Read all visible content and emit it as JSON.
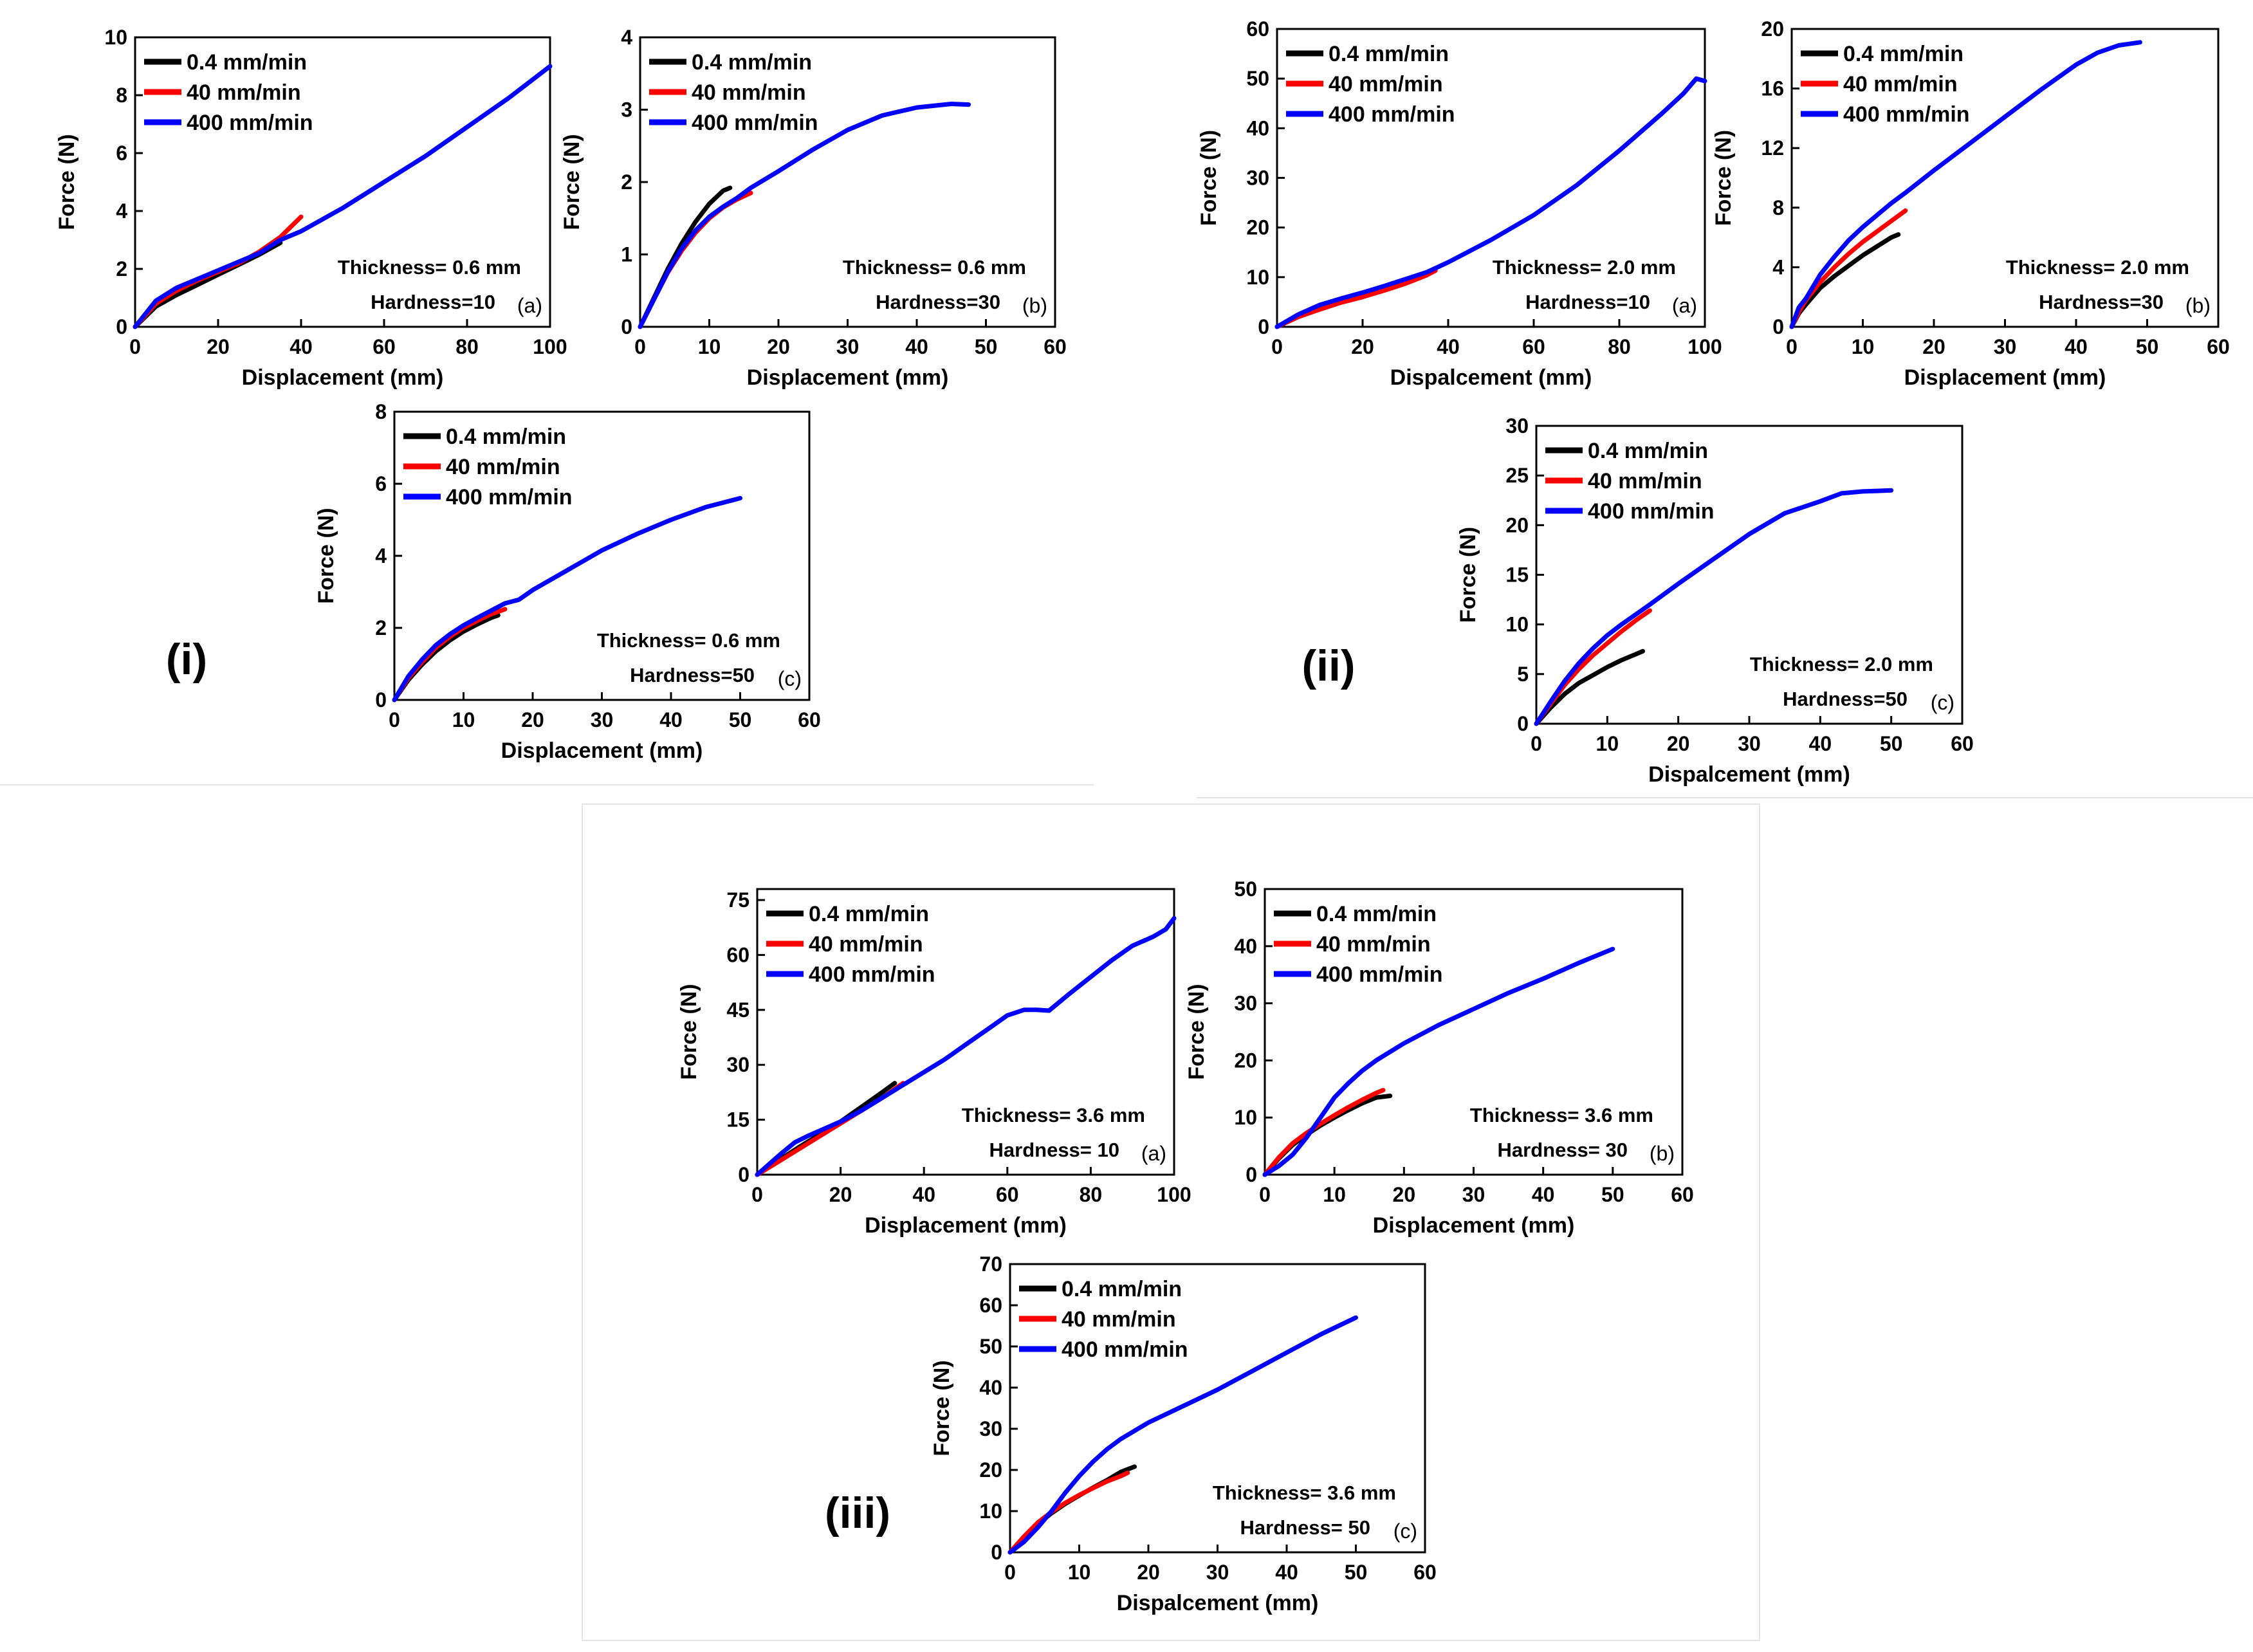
{
  "legend_colors": {
    "0.4 mm/min": "#000000",
    "40 mm/min": "#ff0000",
    "400 mm/min": "#0000ff"
  },
  "group_labels": [
    "(i)",
    "(ii)",
    "(iii)"
  ],
  "chart_data": [
    {
      "type": "line",
      "group": "(i)",
      "panel": "(a)",
      "xlabel": "Displacement (mm)",
      "ylabel": "Force (N)",
      "xlim": [
        0,
        100
      ],
      "ylim": [
        0,
        10
      ],
      "xticks": [
        "0",
        "20",
        "40",
        "60",
        "80",
        "100"
      ],
      "yticks": [
        "0",
        "2",
        "4",
        "6",
        "8",
        "10"
      ],
      "annotations": [
        "Thickness= 0.6 mm",
        "Hardness=10"
      ],
      "series": [
        {
          "name": "0.4 mm/min",
          "color": "#000000",
          "x": [
            0,
            5,
            10,
            15,
            20,
            25,
            30,
            35
          ],
          "y": [
            0,
            0.7,
            1.1,
            1.45,
            1.8,
            2.15,
            2.5,
            2.9
          ]
        },
        {
          "name": "40 mm/min",
          "color": "#ff0000",
          "x": [
            0,
            5,
            10,
            15,
            20,
            25,
            30,
            35,
            40
          ],
          "y": [
            0,
            0.8,
            1.25,
            1.6,
            1.9,
            2.2,
            2.6,
            3.1,
            3.8
          ]
        },
        {
          "name": "400 mm/min",
          "color": "#0000ff",
          "x": [
            0,
            5,
            10,
            15,
            20,
            25,
            30,
            35,
            40,
            50,
            60,
            70,
            80,
            90,
            100
          ],
          "y": [
            0,
            0.9,
            1.35,
            1.65,
            1.95,
            2.25,
            2.55,
            3.0,
            3.3,
            4.1,
            5.0,
            5.9,
            6.9,
            7.9,
            9.0
          ]
        }
      ]
    },
    {
      "type": "line",
      "group": "(i)",
      "panel": "(b)",
      "xlabel": "Displacement (mm)",
      "ylabel": "Force (N)",
      "xlim": [
        0,
        60
      ],
      "ylim": [
        0,
        4
      ],
      "xticks": [
        "0",
        "10",
        "20",
        "30",
        "40",
        "50",
        "60"
      ],
      "yticks": [
        "0",
        "1",
        "2",
        "3",
        "4"
      ],
      "annotations": [
        "Thickness= 0.6 mm",
        "Hardness=30"
      ],
      "series": [
        {
          "name": "0.4 mm/min",
          "color": "#000000",
          "x": [
            0,
            2,
            4,
            6,
            8,
            10,
            12,
            13
          ],
          "y": [
            0,
            0.4,
            0.8,
            1.15,
            1.45,
            1.7,
            1.88,
            1.92
          ]
        },
        {
          "name": "40 mm/min",
          "color": "#ff0000",
          "x": [
            0,
            2,
            4,
            6,
            8,
            10,
            12,
            14,
            16
          ],
          "y": [
            0,
            0.38,
            0.75,
            1.05,
            1.3,
            1.5,
            1.65,
            1.76,
            1.85
          ]
        },
        {
          "name": "400 mm/min",
          "color": "#0000ff",
          "x": [
            0,
            2,
            4,
            6,
            8,
            10,
            12,
            14,
            16,
            20,
            25,
            30,
            35,
            40,
            45,
            47.5
          ],
          "y": [
            0,
            0.38,
            0.76,
            1.08,
            1.33,
            1.52,
            1.66,
            1.78,
            1.92,
            2.15,
            2.45,
            2.72,
            2.92,
            3.03,
            3.08,
            3.07
          ]
        }
      ]
    },
    {
      "type": "line",
      "group": "(i)",
      "panel": "(c)",
      "xlabel": "Displacement (mm)",
      "ylabel": "Force (N)",
      "xlim": [
        0,
        60
      ],
      "ylim": [
        0,
        8
      ],
      "xticks": [
        "0",
        "10",
        "20",
        "30",
        "40",
        "50",
        "60"
      ],
      "yticks": [
        "0",
        "2",
        "4",
        "6",
        "8"
      ],
      "annotations": [
        "Thickness= 0.6 mm",
        "Hardness=50"
      ],
      "series": [
        {
          "name": "0.4 mm/min",
          "color": "#000000",
          "x": [
            0,
            2,
            4,
            6,
            8,
            10,
            12,
            14,
            15
          ],
          "y": [
            0,
            0.55,
            0.98,
            1.35,
            1.65,
            1.9,
            2.1,
            2.28,
            2.35
          ]
        },
        {
          "name": "40 mm/min",
          "color": "#ff0000",
          "x": [
            0,
            2,
            4,
            6,
            8,
            10,
            12,
            14,
            16
          ],
          "y": [
            0,
            0.6,
            1.05,
            1.45,
            1.75,
            2.0,
            2.2,
            2.38,
            2.52
          ]
        },
        {
          "name": "400 mm/min",
          "color": "#0000ff",
          "x": [
            0,
            2,
            4,
            6,
            8,
            10,
            12,
            14,
            16,
            18,
            20,
            25,
            30,
            35,
            40,
            45,
            50
          ],
          "y": [
            0,
            0.65,
            1.12,
            1.52,
            1.82,
            2.07,
            2.28,
            2.48,
            2.68,
            2.78,
            3.05,
            3.6,
            4.15,
            4.6,
            5.0,
            5.35,
            5.6
          ]
        }
      ]
    },
    {
      "type": "line",
      "group": "(ii)",
      "panel": "(a)",
      "xlabel": "Dispalcement (mm)",
      "ylabel": "Force (N)",
      "xlim": [
        0,
        100
      ],
      "ylim": [
        0,
        60
      ],
      "xticks": [
        "0",
        "20",
        "40",
        "60",
        "80",
        "100"
      ],
      "yticks": [
        "0",
        "10",
        "20",
        "30",
        "40",
        "50",
        "60"
      ],
      "annotations": [
        "Thickness= 2.0 mm",
        "Hardness=10"
      ],
      "series": [
        {
          "name": "0.4 mm/min",
          "color": "#000000",
          "x": [
            0,
            5,
            10,
            15,
            20,
            25,
            30,
            35,
            37
          ],
          "y": [
            0,
            2.3,
            4.0,
            5.2,
            6.3,
            7.5,
            8.9,
            10.5,
            11.5
          ]
        },
        {
          "name": "40 mm/min",
          "color": "#ff0000",
          "x": [
            0,
            5,
            10,
            15,
            20,
            25,
            30,
            35,
            37
          ],
          "y": [
            0,
            2.0,
            3.5,
            4.9,
            6.0,
            7.3,
            8.7,
            10.4,
            11.3
          ]
        },
        {
          "name": "400 mm/min",
          "color": "#0000ff",
          "x": [
            0,
            5,
            10,
            15,
            20,
            25,
            30,
            35,
            40,
            50,
            60,
            70,
            80,
            90,
            95,
            98,
            100
          ],
          "y": [
            0,
            2.5,
            4.4,
            5.7,
            6.9,
            8.2,
            9.6,
            11.0,
            13.0,
            17.5,
            22.5,
            28.5,
            35.5,
            43.0,
            47.0,
            50.0,
            49.5
          ]
        }
      ]
    },
    {
      "type": "line",
      "group": "(ii)",
      "panel": "(b)",
      "xlabel": "Displacement (mm)",
      "ylabel": "Force (N)",
      "xlim": [
        0,
        60
      ],
      "ylim": [
        0,
        20
      ],
      "xticks": [
        "0",
        "10",
        "20",
        "30",
        "40",
        "50",
        "60"
      ],
      "yticks": [
        "0",
        "4",
        "8",
        "12",
        "16",
        "20"
      ],
      "annotations": [
        "Thickness= 2.0 mm",
        "Hardness=30"
      ],
      "series": [
        {
          "name": "0.4 mm/min",
          "color": "#000000",
          "x": [
            0,
            1,
            2,
            4,
            6,
            8,
            10,
            12,
            14,
            15
          ],
          "y": [
            0,
            0.9,
            1.5,
            2.6,
            3.4,
            4.1,
            4.8,
            5.4,
            6.0,
            6.2
          ]
        },
        {
          "name": "40 mm/min",
          "color": "#ff0000",
          "x": [
            0,
            1,
            2,
            4,
            6,
            8,
            10,
            12,
            14,
            16
          ],
          "y": [
            0,
            1.0,
            1.8,
            3.0,
            4.0,
            4.9,
            5.7,
            6.4,
            7.1,
            7.8
          ]
        },
        {
          "name": "400 mm/min",
          "color": "#0000ff",
          "x": [
            0,
            1,
            2,
            4,
            6,
            8,
            10,
            12,
            14,
            16,
            20,
            25,
            30,
            35,
            40,
            43,
            46,
            49
          ],
          "y": [
            0,
            1.3,
            1.9,
            3.5,
            4.7,
            5.8,
            6.7,
            7.5,
            8.3,
            9.0,
            10.5,
            12.3,
            14.1,
            15.9,
            17.6,
            18.4,
            18.9,
            19.1
          ]
        }
      ]
    },
    {
      "type": "line",
      "group": "(ii)",
      "panel": "(c)",
      "xlabel": "Dispalcement (mm)",
      "ylabel": "Force (N)",
      "xlim": [
        0,
        60
      ],
      "ylim": [
        0,
        30
      ],
      "xticks": [
        "0",
        "10",
        "20",
        "30",
        "40",
        "50",
        "60"
      ],
      "yticks": [
        "0",
        "5",
        "10",
        "15",
        "20",
        "25",
        "30"
      ],
      "annotations": [
        "Thickness= 2.0 mm",
        "Hardness=50"
      ],
      "series": [
        {
          "name": "0.4 mm/min",
          "color": "#000000",
          "x": [
            0,
            2,
            4,
            6,
            8,
            10,
            12,
            14,
            15
          ],
          "y": [
            0,
            1.6,
            3.0,
            4.1,
            4.9,
            5.7,
            6.4,
            7.0,
            7.3
          ]
        },
        {
          "name": "40 mm/min",
          "color": "#ff0000",
          "x": [
            0,
            2,
            4,
            6,
            8,
            10,
            12,
            14,
            16
          ],
          "y": [
            0,
            2.0,
            3.9,
            5.5,
            6.9,
            8.1,
            9.3,
            10.4,
            11.4
          ]
        },
        {
          "name": "400 mm/min",
          "color": "#0000ff",
          "x": [
            0,
            2,
            4,
            6,
            8,
            10,
            12,
            14,
            16,
            20,
            25,
            30,
            35,
            40,
            43,
            46,
            50
          ],
          "y": [
            0,
            2.2,
            4.3,
            6.1,
            7.6,
            8.9,
            10.0,
            11.0,
            12.0,
            14.1,
            16.6,
            19.1,
            21.2,
            22.4,
            23.2,
            23.4,
            23.5
          ]
        }
      ]
    },
    {
      "type": "line",
      "group": "(iii)",
      "panel": "(a)",
      "xlabel": "Displacement (mm)",
      "ylabel": "Force (N)",
      "xlim": [
        0,
        100
      ],
      "ylim": [
        0,
        78
      ],
      "xticks": [
        "0",
        "20",
        "40",
        "60",
        "80",
        "100"
      ],
      "yticks": [
        "0",
        "15",
        "30",
        "45",
        "60",
        "75"
      ],
      "annotations": [
        "Thickness= 3.6 mm",
        "Hardness= 10"
      ],
      "series": [
        {
          "name": "0.4 mm/min",
          "color": "#000000",
          "x": [
            0,
            5,
            10,
            15,
            20,
            25,
            30,
            33
          ],
          "y": [
            0,
            3.8,
            7.5,
            11.0,
            14.5,
            18.5,
            22.5,
            25.0
          ]
        },
        {
          "name": "40 mm/min",
          "color": "#ff0000",
          "x": [
            0,
            5,
            10,
            15,
            20,
            25,
            30,
            35
          ],
          "y": [
            0,
            3.5,
            7.0,
            10.5,
            14.0,
            17.5,
            21.0,
            25.0
          ]
        },
        {
          "name": "400 mm/min",
          "color": "#0000ff",
          "x": [
            0,
            3,
            6,
            9,
            12,
            15,
            20,
            25,
            30,
            35,
            40,
            45,
            50,
            55,
            60,
            64,
            67,
            70,
            75,
            80,
            85,
            90,
            95,
            98,
            100
          ],
          "y": [
            0,
            3.0,
            6.0,
            8.8,
            10.5,
            12.0,
            14.5,
            17.5,
            21.0,
            24.5,
            28.0,
            31.5,
            35.5,
            39.5,
            43.5,
            45.0,
            45.0,
            44.8,
            49.5,
            54.0,
            58.5,
            62.5,
            65.0,
            67.0,
            70.0
          ]
        }
      ]
    },
    {
      "type": "line",
      "group": "(iii)",
      "panel": "(b)",
      "xlabel": "Displacement (mm)",
      "ylabel": "Force (N)",
      "xlim": [
        0,
        60
      ],
      "ylim": [
        0,
        50
      ],
      "xticks": [
        "0",
        "10",
        "20",
        "30",
        "40",
        "50",
        "60"
      ],
      "yticks": [
        "0",
        "10",
        "20",
        "30",
        "40",
        "50"
      ],
      "annotations": [
        "Thickness= 3.6 mm",
        "Hardness= 30"
      ],
      "series": [
        {
          "name": "0.4 mm/min",
          "color": "#000000",
          "x": [
            0,
            2,
            4,
            6,
            8,
            10,
            12,
            14,
            16,
            18
          ],
          "y": [
            0,
            2.8,
            5.2,
            7.0,
            8.6,
            10.0,
            11.3,
            12.5,
            13.5,
            13.8
          ]
        },
        {
          "name": "40 mm/min",
          "color": "#ff0000",
          "x": [
            0,
            2,
            4,
            6,
            8,
            10,
            12,
            14,
            16,
            17
          ],
          "y": [
            0,
            3.0,
            5.5,
            7.3,
            8.9,
            10.4,
            11.8,
            13.1,
            14.3,
            14.8
          ]
        },
        {
          "name": "400 mm/min",
          "color": "#0000ff",
          "x": [
            0,
            2,
            4,
            6,
            8,
            10,
            12,
            14,
            16,
            20,
            25,
            30,
            35,
            40,
            45,
            50
          ],
          "y": [
            0,
            1.5,
            3.5,
            6.5,
            10.0,
            13.5,
            16.0,
            18.2,
            20.0,
            23.0,
            26.2,
            29.0,
            31.8,
            34.3,
            37.0,
            39.5
          ]
        }
      ]
    },
    {
      "type": "line",
      "group": "(iii)",
      "panel": "(c)",
      "xlabel": "Dispalcement (mm)",
      "ylabel": "Force (N)",
      "xlim": [
        0,
        60
      ],
      "ylim": [
        0,
        70
      ],
      "xticks": [
        "0",
        "10",
        "20",
        "30",
        "40",
        "50",
        "60"
      ],
      "yticks": [
        "0",
        "10",
        "20",
        "30",
        "40",
        "50",
        "60",
        "70"
      ],
      "annotations": [
        "Thickness= 3.6 mm",
        "Hardness= 50"
      ],
      "series": [
        {
          "name": "0.4 mm/min",
          "color": "#000000",
          "x": [
            0,
            2,
            4,
            6,
            8,
            10,
            12,
            14,
            16,
            18
          ],
          "y": [
            0,
            3.5,
            6.8,
            9.5,
            11.8,
            13.8,
            15.7,
            17.5,
            19.5,
            20.8
          ]
        },
        {
          "name": "40 mm/min",
          "color": "#ff0000",
          "x": [
            0,
            2,
            4,
            6,
            8,
            10,
            12,
            14,
            16,
            17
          ],
          "y": [
            0,
            3.8,
            7.2,
            9.8,
            12.0,
            13.9,
            15.6,
            17.2,
            18.5,
            19.3
          ]
        },
        {
          "name": "400 mm/min",
          "color": "#0000ff",
          "x": [
            0,
            2,
            4,
            6,
            8,
            10,
            12,
            14,
            16,
            20,
            25,
            30,
            35,
            40,
            45,
            50
          ],
          "y": [
            0,
            2.5,
            6.0,
            10.0,
            14.5,
            18.5,
            22.0,
            25.0,
            27.5,
            31.5,
            35.5,
            39.5,
            44.0,
            48.5,
            53.0,
            57.0
          ]
        }
      ]
    }
  ]
}
